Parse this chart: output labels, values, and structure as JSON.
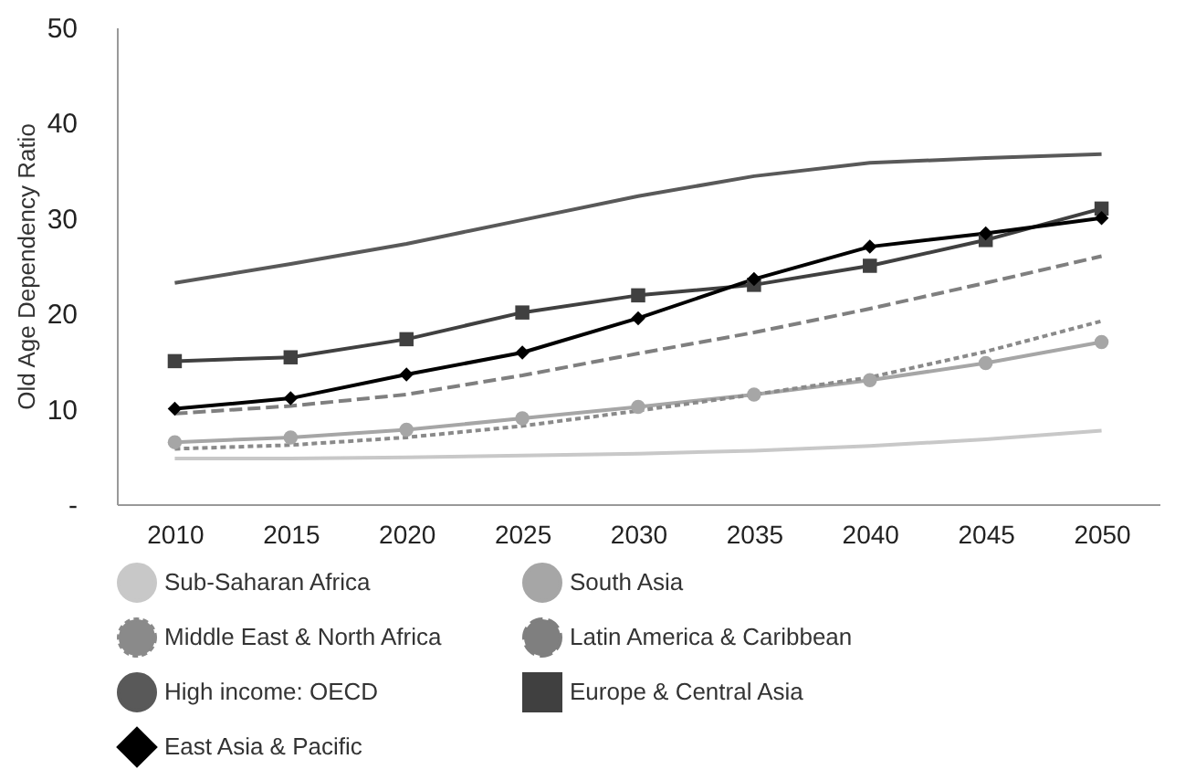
{
  "chart_data": {
    "type": "line",
    "ylabel": "Old Age Dependency Ratio",
    "categories": [
      "2010",
      "2015",
      "2020",
      "2025",
      "2030",
      "2035",
      "2040",
      "2045",
      "2050"
    ],
    "ylim": [
      0,
      50
    ],
    "yticks": [
      {
        "value": 0,
        "label": "-"
      },
      10,
      20,
      30,
      40,
      50
    ],
    "grid": false,
    "legend": "bottom",
    "series": [
      {
        "name": "Sub-Saharan Africa",
        "color": "#c8c8c8",
        "marker": "none",
        "line_style": "solid",
        "values": [
          4.8,
          4.8,
          4.9,
          5.1,
          5.3,
          5.6,
          6.1,
          6.8,
          7.7
        ]
      },
      {
        "name": "South Asia",
        "color": "#a6a6a6",
        "marker": "circle",
        "line_style": "solid",
        "values": [
          6.5,
          7.0,
          7.8,
          9.0,
          10.2,
          11.5,
          13.0,
          14.8,
          17.0
        ]
      },
      {
        "name": "Middle East & North Africa",
        "color": "#8a8a8a",
        "marker": "none",
        "line_style": "dotted",
        "values": [
          5.8,
          6.2,
          7.0,
          8.2,
          9.8,
          11.5,
          13.3,
          16.0,
          19.2
        ]
      },
      {
        "name": "Latin America & Caribbean",
        "color": "#7f7f7f",
        "marker": "none",
        "line_style": "dashed",
        "values": [
          9.5,
          10.3,
          11.5,
          13.5,
          15.8,
          18.0,
          20.5,
          23.2,
          26.0
        ]
      },
      {
        "name": "High income: OECD",
        "color": "#595959",
        "marker": "none",
        "line_style": "solid",
        "values": [
          23.2,
          25.2,
          27.3,
          29.8,
          32.3,
          34.4,
          35.8,
          36.3,
          36.7
        ]
      },
      {
        "name": "Europe & Central Asia",
        "color": "#404040",
        "marker": "square",
        "line_style": "solid",
        "values": [
          15.0,
          15.4,
          17.3,
          20.1,
          21.9,
          23.0,
          25.0,
          27.7,
          31.0
        ]
      },
      {
        "name": "East Asia & Pacific",
        "color": "#000000",
        "marker": "diamond",
        "line_style": "solid",
        "values": [
          10.0,
          11.1,
          13.6,
          15.9,
          19.5,
          23.6,
          27.0,
          28.4,
          30.0
        ]
      }
    ]
  }
}
